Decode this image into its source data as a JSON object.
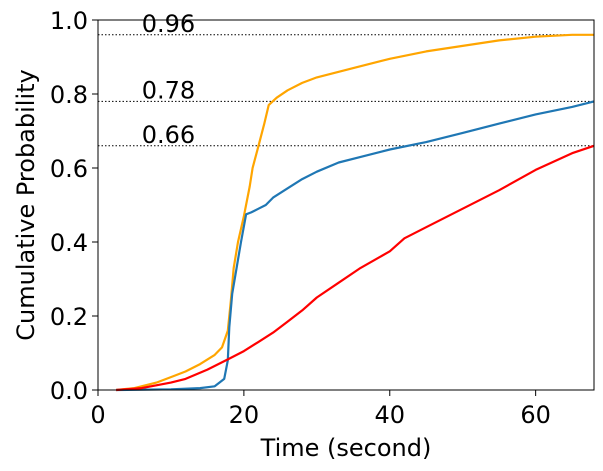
{
  "chart_data": {
    "type": "line",
    "title": "",
    "xlabel": "Time (second)",
    "ylabel": "Cumulative Probability",
    "xlim": [
      0,
      68
    ],
    "ylim": [
      0,
      1.0
    ],
    "xticks": [
      0,
      20,
      40,
      60
    ],
    "yticks": [
      0.0,
      0.2,
      0.4,
      0.6,
      0.8,
      1.0
    ],
    "xtick_labels": [
      "0",
      "20",
      "40",
      "60"
    ],
    "ytick_labels": [
      "0.0",
      "0.2",
      "0.4",
      "0.6",
      "0.8",
      "1.0"
    ],
    "grid": false,
    "legend": "none",
    "series": [
      {
        "color": "#ffa500",
        "x": [
          2.5,
          5,
          8,
          10,
          12,
          14,
          16,
          17,
          17.8,
          18.2,
          18.6,
          19.2,
          20.0,
          20.8,
          21.2,
          22.0,
          22.8,
          23.4,
          24.5,
          26,
          28,
          30,
          32,
          35,
          40,
          45,
          50,
          55,
          60,
          65,
          68
        ],
        "y": [
          0.0,
          0.005,
          0.02,
          0.035,
          0.05,
          0.07,
          0.095,
          0.115,
          0.16,
          0.24,
          0.33,
          0.4,
          0.47,
          0.55,
          0.6,
          0.66,
          0.72,
          0.77,
          0.79,
          0.81,
          0.83,
          0.845,
          0.855,
          0.87,
          0.895,
          0.915,
          0.93,
          0.945,
          0.955,
          0.96,
          0.96
        ]
      },
      {
        "color": "#1f77b4",
        "x": [
          2.5,
          10,
          14,
          16,
          17.3,
          17.8,
          18.0,
          18.4,
          19.0,
          19.6,
          20.3,
          21.0,
          22.0,
          23.0,
          24,
          26,
          28,
          30,
          33,
          36,
          40,
          45,
          50,
          55,
          60,
          65,
          68
        ],
        "y": [
          0.0,
          0.002,
          0.005,
          0.01,
          0.03,
          0.08,
          0.17,
          0.26,
          0.33,
          0.4,
          0.475,
          0.48,
          0.49,
          0.5,
          0.52,
          0.545,
          0.57,
          0.59,
          0.615,
          0.63,
          0.65,
          0.67,
          0.695,
          0.72,
          0.745,
          0.765,
          0.78
        ]
      },
      {
        "color": "#ff0000",
        "x": [
          2.5,
          6,
          10,
          12,
          15,
          18,
          20,
          22,
          24,
          26,
          28,
          30,
          33,
          36,
          40,
          42,
          45,
          50,
          55,
          60,
          65,
          68
        ],
        "y": [
          0.0,
          0.005,
          0.02,
          0.03,
          0.055,
          0.085,
          0.105,
          0.13,
          0.155,
          0.185,
          0.215,
          0.25,
          0.29,
          0.33,
          0.375,
          0.41,
          0.44,
          0.49,
          0.54,
          0.595,
          0.64,
          0.66
        ]
      }
    ],
    "reference_lines": [
      {
        "y": 0.96,
        "label": "0.96",
        "label_x": 6
      },
      {
        "y": 0.78,
        "label": "0.78",
        "label_x": 6
      },
      {
        "y": 0.66,
        "label": "0.66",
        "label_x": 6
      }
    ]
  }
}
